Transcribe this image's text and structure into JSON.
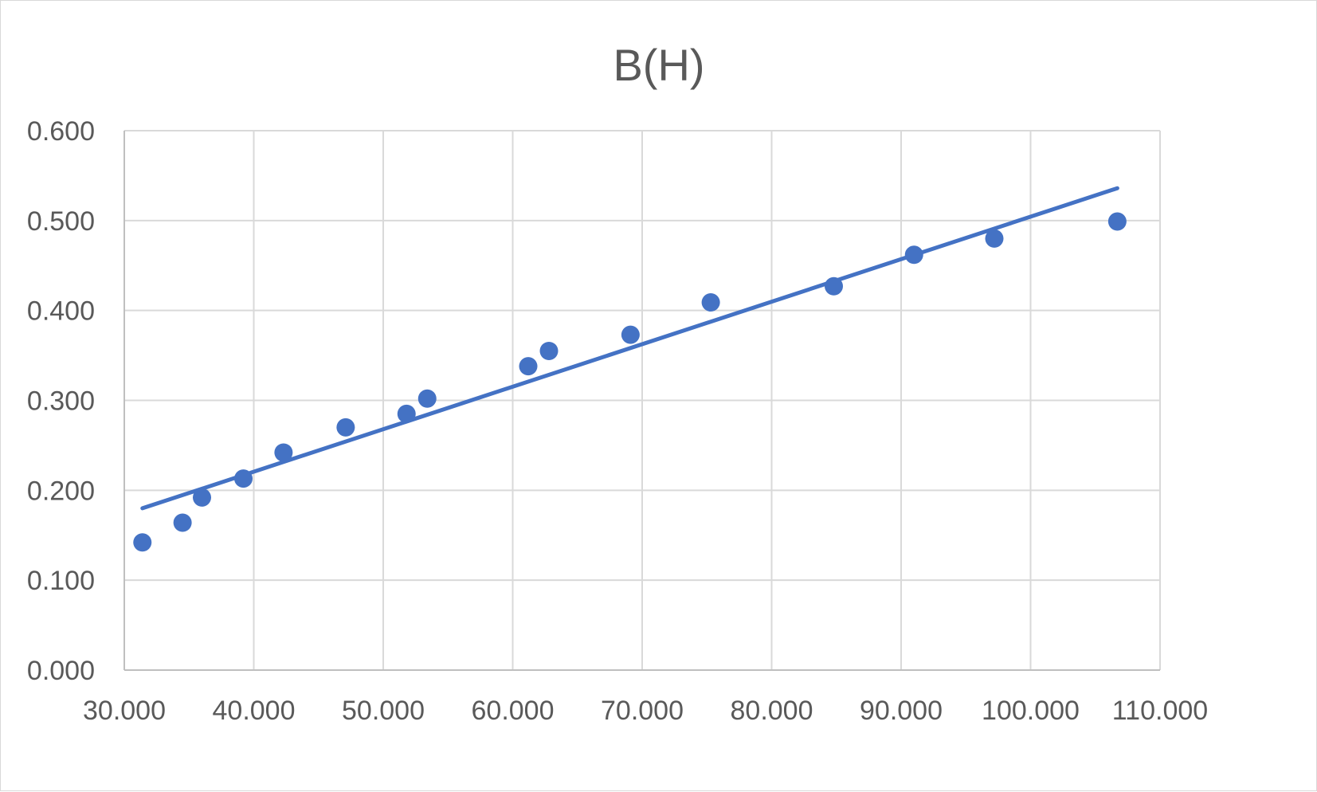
{
  "chart_data": {
    "type": "scatter",
    "title": "B(H)",
    "xlabel": "",
    "ylabel": "",
    "xlim": [
      30,
      110
    ],
    "ylim": [
      0,
      0.6
    ],
    "xticks": [
      "30.000",
      "40.000",
      "50.000",
      "60.000",
      "70.000",
      "80.000",
      "90.000",
      "100.000",
      "110.000"
    ],
    "yticks": [
      "0.000",
      "0.100",
      "0.200",
      "0.300",
      "0.400",
      "0.500",
      "0.600"
    ],
    "grid": true,
    "legend": "none",
    "series": [
      {
        "color": "#4472c4",
        "points": [
          {
            "x": 31.4,
            "y": 0.142
          },
          {
            "x": 34.5,
            "y": 0.164
          },
          {
            "x": 36.0,
            "y": 0.192
          },
          {
            "x": 39.2,
            "y": 0.213
          },
          {
            "x": 42.3,
            "y": 0.242
          },
          {
            "x": 47.1,
            "y": 0.27
          },
          {
            "x": 51.8,
            "y": 0.285
          },
          {
            "x": 53.4,
            "y": 0.302
          },
          {
            "x": 61.2,
            "y": 0.338
          },
          {
            "x": 62.8,
            "y": 0.355
          },
          {
            "x": 69.1,
            "y": 0.373
          },
          {
            "x": 75.3,
            "y": 0.409
          },
          {
            "x": 84.8,
            "y": 0.427
          },
          {
            "x": 91.0,
            "y": 0.462
          },
          {
            "x": 97.2,
            "y": 0.48
          },
          {
            "x": 106.7,
            "y": 0.499
          }
        ]
      }
    ],
    "trendline": {
      "type": "linear",
      "color": "#4472c4",
      "x": [
        31.4,
        106.7
      ],
      "y": [
        0.18,
        0.536
      ]
    }
  }
}
